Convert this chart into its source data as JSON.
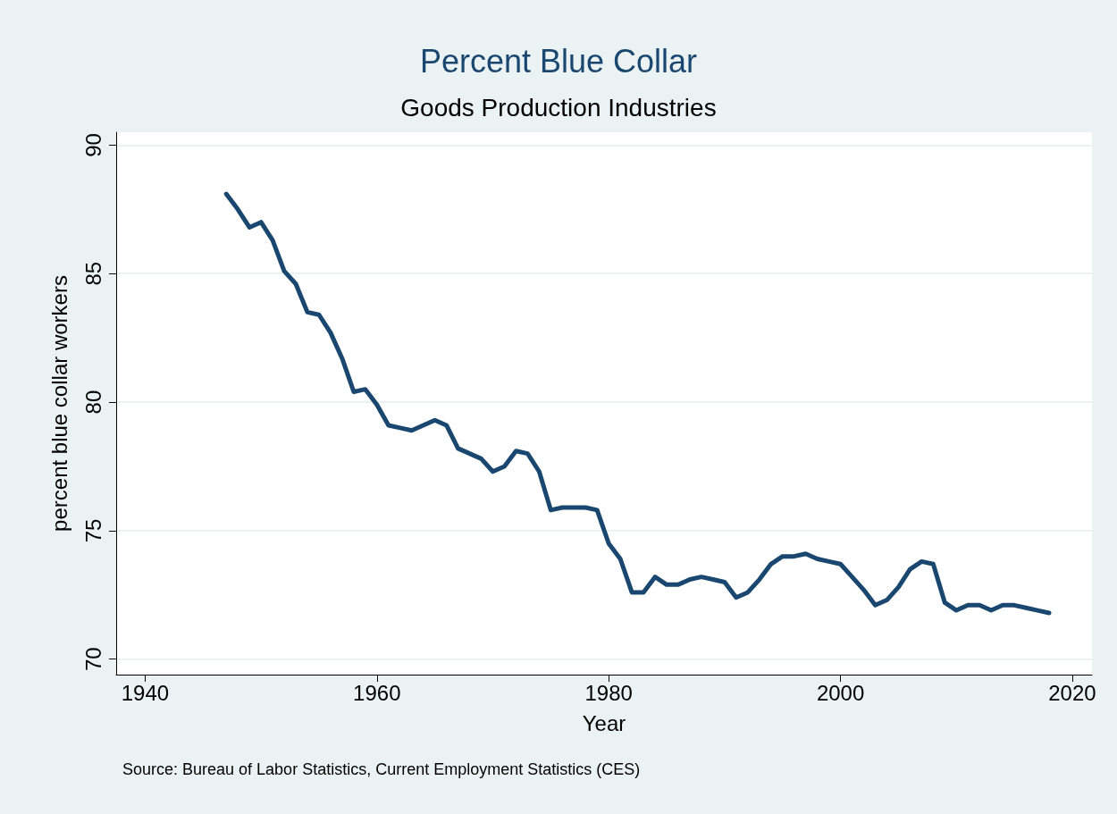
{
  "chart_data": {
    "type": "line",
    "title": "Percent Blue Collar",
    "subtitle": "Goods Production Industries",
    "xlabel": "Year",
    "ylabel": "percent blue collar workers",
    "annotations": [
      "Source: Bureau of Labor Statistics, Current Employment Statistics (CES)"
    ],
    "x": [
      1947,
      1948,
      1949,
      1950,
      1951,
      1952,
      1953,
      1954,
      1955,
      1956,
      1957,
      1958,
      1959,
      1960,
      1961,
      1962,
      1963,
      1964,
      1965,
      1966,
      1967,
      1968,
      1969,
      1970,
      1971,
      1972,
      1973,
      1974,
      1975,
      1976,
      1977,
      1978,
      1979,
      1980,
      1981,
      1982,
      1983,
      1984,
      1985,
      1986,
      1987,
      1988,
      1989,
      1990,
      1991,
      1992,
      1993,
      1994,
      1995,
      1996,
      1997,
      1998,
      1999,
      2000,
      2001,
      2002,
      2003,
      2004,
      2005,
      2006,
      2007,
      2008,
      2009,
      2010,
      2011,
      2012,
      2013,
      2014,
      2015,
      2016,
      2017,
      2018
    ],
    "series": [
      {
        "color": "#1a476f",
        "values": [
          88.1,
          87.5,
          86.8,
          87.0,
          86.3,
          85.1,
          84.6,
          83.5,
          83.4,
          82.7,
          81.7,
          80.4,
          80.5,
          79.9,
          79.1,
          79.0,
          78.9,
          79.1,
          79.3,
          79.1,
          78.2,
          78.0,
          77.8,
          77.3,
          77.5,
          78.1,
          78.0,
          77.3,
          75.8,
          75.9,
          75.9,
          75.9,
          75.8,
          74.5,
          73.9,
          72.6,
          72.6,
          73.2,
          72.9,
          72.9,
          73.1,
          73.2,
          73.1,
          73.0,
          72.4,
          72.6,
          73.1,
          73.7,
          74.0,
          74.0,
          74.1,
          73.9,
          73.8,
          73.7,
          73.2,
          72.7,
          72.1,
          72.3,
          72.8,
          73.5,
          73.8,
          73.7,
          72.2,
          71.9,
          72.1,
          72.1,
          71.9,
          72.1,
          72.1,
          72.0,
          71.9,
          71.8
        ]
      }
    ],
    "xlim": [
      1937.5,
      2021.7
    ],
    "xticks": [
      1940,
      1960,
      1980,
      2000,
      2020
    ],
    "ylim": [
      69.4,
      90.5
    ],
    "yticks": [
      70,
      75,
      80,
      85,
      90
    ],
    "grid": "y",
    "line_style": "solid"
  }
}
